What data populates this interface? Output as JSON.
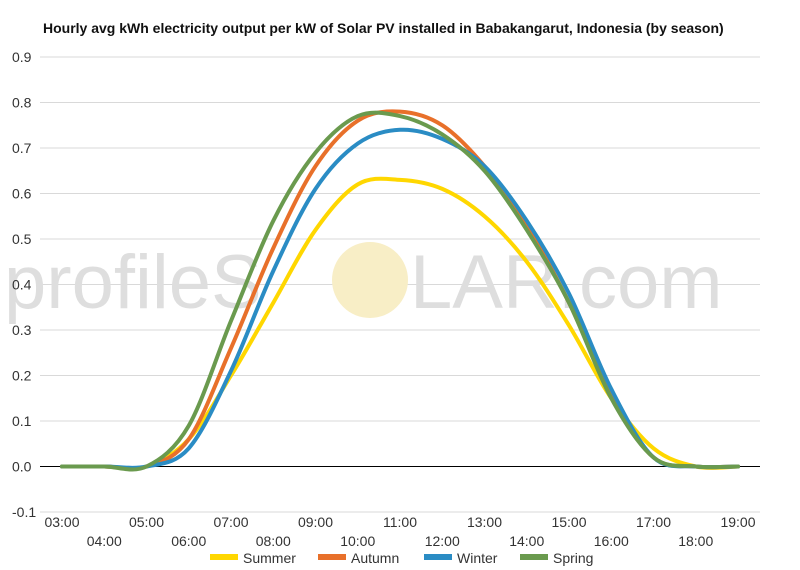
{
  "watermark": {
    "left_text": "profileS",
    "right_text": "LAR.com"
  },
  "chart_data": {
    "type": "line",
    "title": "Hourly avg kWh electricity output per kW of Solar PV installed in Babakangarut, Indonesia (by season)",
    "xlabel": "",
    "ylabel": "",
    "ylim": [
      -0.1,
      0.9
    ],
    "yticks": [
      "-0.1",
      "0.0",
      "0.1",
      "0.2",
      "0.3",
      "0.4",
      "0.5",
      "0.6",
      "0.7",
      "0.8",
      "0.9"
    ],
    "categories": [
      "03:00",
      "04:00",
      "05:00",
      "06:00",
      "07:00",
      "08:00",
      "09:00",
      "10:00",
      "11:00",
      "12:00",
      "13:00",
      "14:00",
      "15:00",
      "16:00",
      "17:00",
      "18:00",
      "19:00"
    ],
    "grid": true,
    "legend_position": "bottom",
    "series": [
      {
        "name": "Summer",
        "color": "#FFD700",
        "values": [
          0.0,
          0.0,
          0.0,
          0.06,
          0.2,
          0.36,
          0.52,
          0.62,
          0.63,
          0.61,
          0.55,
          0.45,
          0.31,
          0.15,
          0.04,
          0.0,
          0.0
        ]
      },
      {
        "name": "Autumn",
        "color": "#E8702A",
        "values": [
          0.0,
          0.0,
          0.0,
          0.06,
          0.26,
          0.48,
          0.66,
          0.76,
          0.78,
          0.75,
          0.66,
          0.53,
          0.36,
          0.16,
          0.02,
          0.0,
          0.0
        ]
      },
      {
        "name": "Winter",
        "color": "#2A8CC4",
        "values": [
          0.0,
          0.0,
          0.0,
          0.04,
          0.21,
          0.43,
          0.61,
          0.71,
          0.74,
          0.72,
          0.66,
          0.54,
          0.38,
          0.17,
          0.02,
          0.0,
          0.0
        ]
      },
      {
        "name": "Spring",
        "color": "#6A9A4E",
        "values": [
          0.0,
          0.0,
          0.0,
          0.09,
          0.32,
          0.54,
          0.69,
          0.77,
          0.77,
          0.73,
          0.65,
          0.52,
          0.36,
          0.15,
          0.02,
          0.0,
          0.0
        ]
      }
    ]
  }
}
